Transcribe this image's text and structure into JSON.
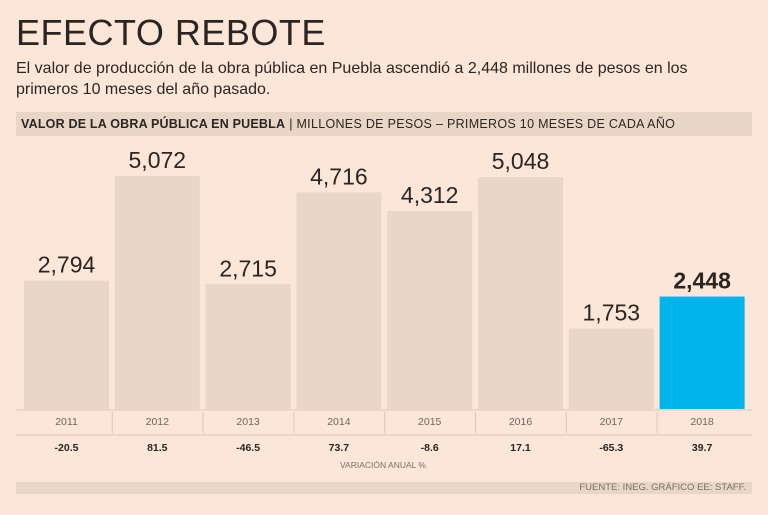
{
  "title": "EFECTO REBOTE",
  "subtitle": "El valor de producción de la obra pública en Puebla ascendió a 2,448 millones de pesos en los primeros 10 meses del año pasado.",
  "header": {
    "main": "VALOR DE LA OBRA PÚBLICA EN PUEBLA",
    "separator": "|",
    "sub": "MILLONES DE PESOS – PRIMEROS 10 MESES DE CADA AÑO"
  },
  "footer": {
    "source": "FUENTE: INEG. GRÁFICO EE: STAFF."
  },
  "colors": {
    "bar": "#e8d6c7",
    "highlight": "#00b5ec",
    "background": "#fbe6d8",
    "text": "#2b2523"
  },
  "chart_data": {
    "type": "bar",
    "title": "VALOR DE LA OBRA PÚBLICA EN PUEBLA",
    "ylabel": "MILLONES DE PESOS",
    "categories": [
      "2011",
      "2012",
      "2013",
      "2014",
      "2015",
      "2016",
      "2017",
      "2018"
    ],
    "values": [
      2794,
      5072,
      2715,
      4716,
      4312,
      5048,
      1753,
      2448
    ],
    "value_labels": [
      "2,794",
      "5,072",
      "2,715",
      "4,716",
      "4,312",
      "5,048",
      "1,753",
      "2,448"
    ],
    "variation_labels": [
      "-20.5",
      "81.5",
      "-46.5",
      "73.7",
      "-8.6",
      "17.1",
      "-65.3",
      "39.7"
    ],
    "variation_title": "VARIACIÓN ANUAL %",
    "highlight_index": 7,
    "ylim": [
      0,
      5500
    ]
  }
}
